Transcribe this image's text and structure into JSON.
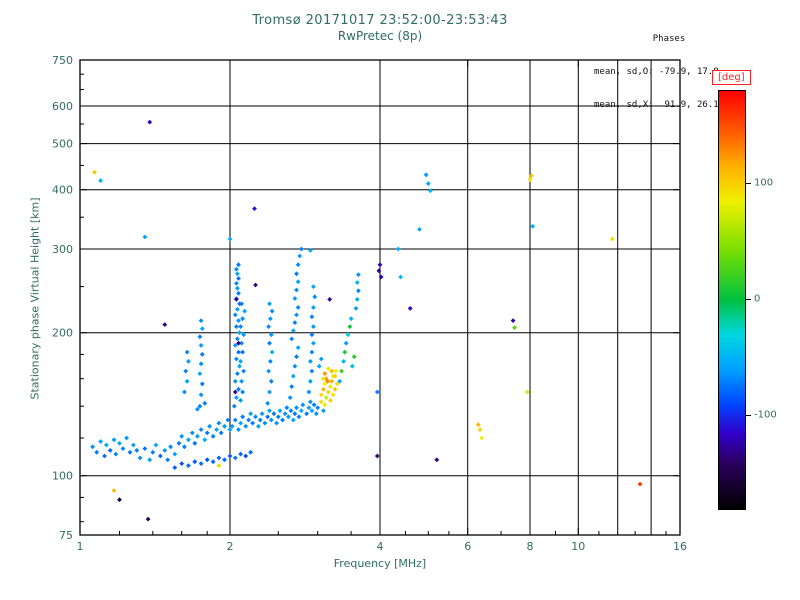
{
  "colors": {
    "axis_text": "#2f6e5e",
    "title_text": "#2f6e5e",
    "frame": "#000000",
    "grid": "#000000",
    "annotation": "#111111",
    "deg_label": "#ff2222",
    "background": "#ffffff"
  },
  "chart_data": {
    "type": "scatter",
    "title": "Tromsø 20171017 23:52:00-23:53:43",
    "subtitle": "RwPretec (8p)",
    "xlabel": "Frequency [MHz]",
    "ylabel": "Stationary phase Virtual Height [km]",
    "x_scale": "log",
    "y_scale": "log",
    "xlim": [
      1,
      16
    ],
    "ylim": [
      75,
      750
    ],
    "grid": true,
    "x_ticks": [
      {
        "v": 1,
        "label": "1"
      },
      {
        "v": 2,
        "label": "2"
      },
      {
        "v": 4,
        "label": "4"
      },
      {
        "v": 6,
        "label": "6"
      },
      {
        "v": 8,
        "label": "8"
      },
      {
        "v": 10,
        "label": "10"
      },
      {
        "v": 16,
        "label": "16"
      }
    ],
    "x_gridlines": [
      2,
      4,
      6,
      8,
      10,
      12,
      14
    ],
    "x_minor_ticks": [
      1.2,
      1.4,
      1.6,
      1.8,
      2.5,
      3,
      3.5,
      4.5,
      5,
      5.5,
      7,
      9,
      11,
      13,
      15
    ],
    "y_ticks": [
      {
        "v": 750,
        "label": "750"
      },
      {
        "v": 600,
        "label": "600"
      },
      {
        "v": 500,
        "label": "500"
      },
      {
        "v": 400,
        "label": "400"
      },
      {
        "v": 300,
        "label": "300"
      },
      {
        "v": 200,
        "label": "200"
      },
      {
        "v": 100,
        "label": "100"
      },
      {
        "v": 75,
        "label": "75"
      }
    ],
    "y_gridlines": [
      100,
      200,
      300,
      400,
      500,
      600
    ],
    "y_minor_ticks": [
      80,
      90,
      120,
      140,
      160,
      180,
      250,
      350,
      450,
      550,
      650,
      700
    ],
    "annotations": {
      "line1": "Phases",
      "line2": "mean, sd,O: -79.9, 17.8",
      "line3": "mean, sd,X:  91.9, 26.1"
    },
    "colorbar": {
      "label": "[deg]",
      "range": [
        -180,
        180
      ],
      "ticks": [
        100,
        0,
        -100
      ],
      "legend_position": "right",
      "stops": [
        [
          -180,
          "#000000"
        ],
        [
          -140,
          "#2b0060"
        ],
        [
          -115,
          "#3300cc"
        ],
        [
          -90,
          "#0044ff"
        ],
        [
          -60,
          "#00a0ff"
        ],
        [
          -30,
          "#00d8e0"
        ],
        [
          0,
          "#00c040"
        ],
        [
          45,
          "#7fe000"
        ],
        [
          85,
          "#f0f000"
        ],
        [
          115,
          "#ffb000"
        ],
        [
          145,
          "#ff5a00"
        ],
        [
          180,
          "#ff0000"
        ]
      ]
    },
    "points": [
      [
        1.06,
        115,
        -65
      ],
      [
        1.08,
        112,
        -72
      ],
      [
        1.1,
        118,
        -58
      ],
      [
        1.12,
        110,
        -76
      ],
      [
        1.13,
        116,
        -55
      ],
      [
        1.15,
        113,
        -80
      ],
      [
        1.17,
        119,
        -62
      ],
      [
        1.18,
        111,
        -70
      ],
      [
        1.2,
        117,
        -57
      ],
      [
        1.22,
        114,
        -68
      ],
      [
        1.24,
        120,
        -63
      ],
      [
        1.26,
        112,
        -75
      ],
      [
        1.28,
        116,
        -59
      ],
      [
        1.3,
        113,
        -71
      ],
      [
        1.32,
        109,
        -66
      ],
      [
        1.35,
        114,
        -74
      ],
      [
        1.38,
        108,
        -60
      ],
      [
        1.4,
        112,
        -69
      ],
      [
        1.42,
        116,
        -56
      ],
      [
        1.45,
        110,
        -78
      ],
      [
        1.48,
        113,
        -64
      ],
      [
        1.5,
        108,
        -72
      ],
      [
        1.52,
        115,
        -66
      ],
      [
        1.55,
        111,
        -59
      ],
      [
        1.58,
        117,
        -72
      ],
      [
        1.6,
        121,
        -64
      ],
      [
        1.62,
        115,
        -70
      ],
      [
        1.65,
        119,
        -57
      ],
      [
        1.68,
        123,
        -66
      ],
      [
        1.7,
        117,
        -75
      ],
      [
        1.72,
        121,
        -62
      ],
      [
        1.75,
        125,
        -68
      ],
      [
        1.78,
        119,
        -55
      ],
      [
        1.8,
        123,
        -73
      ],
      [
        1.82,
        127,
        -65
      ],
      [
        1.85,
        121,
        -70
      ],
      [
        1.88,
        125,
        -60
      ],
      [
        1.9,
        129,
        -67
      ],
      [
        1.92,
        123,
        -74
      ],
      [
        1.95,
        127,
        -62
      ],
      [
        1.98,
        131,
        -69
      ],
      [
        2.0,
        125,
        -58
      ],
      [
        1.55,
        104,
        -82
      ],
      [
        1.6,
        106,
        -86
      ],
      [
        1.65,
        105,
        -78
      ],
      [
        1.7,
        107,
        -83
      ],
      [
        1.75,
        106,
        -76
      ],
      [
        1.8,
        108,
        -85
      ],
      [
        1.85,
        107,
        -79
      ],
      [
        1.9,
        109,
        -81
      ],
      [
        1.95,
        108,
        -77
      ],
      [
        2.0,
        110,
        -84
      ],
      [
        2.05,
        109,
        -75
      ],
      [
        2.1,
        111,
        -80
      ],
      [
        2.15,
        110,
        -86
      ],
      [
        2.2,
        112,
        -78
      ],
      [
        2.02,
        127,
        -62
      ],
      [
        2.05,
        131,
        -70
      ],
      [
        2.08,
        125,
        -66
      ],
      [
        2.1,
        129,
        -57
      ],
      [
        2.12,
        133,
        -72
      ],
      [
        2.15,
        127,
        -64
      ],
      [
        2.18,
        131,
        -69
      ],
      [
        2.2,
        135,
        -60
      ],
      [
        2.22,
        129,
        -74
      ],
      [
        2.25,
        133,
        -66
      ],
      [
        2.28,
        127,
        -58
      ],
      [
        2.3,
        131,
        -71
      ],
      [
        2.32,
        135,
        -63
      ],
      [
        2.35,
        129,
        -68
      ],
      [
        2.38,
        133,
        -75
      ],
      [
        2.4,
        137,
        -59
      ],
      [
        2.42,
        131,
        -66
      ],
      [
        2.45,
        135,
        -72
      ],
      [
        2.48,
        129,
        -64
      ],
      [
        2.5,
        133,
        -70
      ],
      [
        2.52,
        137,
        -56
      ],
      [
        2.55,
        131,
        -73
      ],
      [
        2.58,
        135,
        -65
      ],
      [
        2.6,
        139,
        -68
      ],
      [
        2.62,
        133,
        -62
      ],
      [
        2.65,
        137,
        -70
      ],
      [
        2.68,
        131,
        -57
      ],
      [
        2.7,
        135,
        -74
      ],
      [
        2.72,
        139,
        -64
      ],
      [
        2.75,
        133,
        -69
      ],
      [
        2.78,
        137,
        -55
      ],
      [
        2.8,
        141,
        -67
      ],
      [
        2.85,
        135,
        -72
      ],
      [
        2.88,
        139,
        -61
      ],
      [
        2.9,
        143,
        -66
      ],
      [
        2.92,
        137,
        -58
      ],
      [
        2.95,
        141,
        -71
      ],
      [
        2.98,
        135,
        -64
      ],
      [
        3.0,
        139,
        -68
      ],
      [
        3.05,
        143,
        92
      ],
      [
        3.08,
        137,
        -62
      ],
      [
        3.1,
        141,
        88
      ],
      [
        1.62,
        150,
        -66
      ],
      [
        1.64,
        158,
        -60
      ],
      [
        1.63,
        166,
        -70
      ],
      [
        1.65,
        174,
        -62
      ],
      [
        1.64,
        182,
        -68
      ],
      [
        1.72,
        138,
        -63
      ],
      [
        1.78,
        142,
        -71
      ],
      [
        1.74,
        140,
        -70
      ],
      [
        1.75,
        148,
        -64
      ],
      [
        1.76,
        156,
        -72
      ],
      [
        1.74,
        164,
        -58
      ],
      [
        1.75,
        172,
        -66
      ],
      [
        1.76,
        180,
        -74
      ],
      [
        1.75,
        188,
        -61
      ],
      [
        1.74,
        196,
        -69
      ],
      [
        1.76,
        204,
        -56
      ],
      [
        1.75,
        212,
        -67
      ],
      [
        2.04,
        140,
        -68
      ],
      [
        2.06,
        146,
        -60
      ],
      [
        2.08,
        152,
        -72
      ],
      [
        2.05,
        158,
        -64
      ],
      [
        2.07,
        164,
        -70
      ],
      [
        2.09,
        170,
        -57
      ],
      [
        2.06,
        176,
        -66
      ],
      [
        2.08,
        182,
        -74
      ],
      [
        2.05,
        188,
        -62
      ],
      [
        2.07,
        194,
        -69
      ],
      [
        2.09,
        200,
        -56
      ],
      [
        2.06,
        206,
        -71
      ],
      [
        2.08,
        212,
        -63
      ],
      [
        2.05,
        218,
        -67
      ],
      [
        2.07,
        224,
        -59
      ],
      [
        2.09,
        230,
        -73
      ],
      [
        2.06,
        236,
        -65
      ],
      [
        2.08,
        242,
        -70
      ],
      [
        2.07,
        248,
        -61
      ],
      [
        2.06,
        254,
        -68
      ],
      [
        2.08,
        260,
        -75
      ],
      [
        2.07,
        266,
        -57
      ],
      [
        2.06,
        272,
        -66
      ],
      [
        2.08,
        278,
        -72
      ],
      [
        2.1,
        144,
        -64
      ],
      [
        2.12,
        150,
        -70
      ],
      [
        2.11,
        158,
        -62
      ],
      [
        2.13,
        166,
        -68
      ],
      [
        2.1,
        174,
        -58
      ],
      [
        2.12,
        182,
        -74
      ],
      [
        2.11,
        190,
        -66
      ],
      [
        2.13,
        198,
        -61
      ],
      [
        2.1,
        206,
        -70
      ],
      [
        2.12,
        214,
        -65
      ],
      [
        2.14,
        222,
        -57
      ],
      [
        2.11,
        230,
        -72
      ],
      [
        2.05,
        150,
        -126
      ],
      [
        2.08,
        190,
        -132
      ],
      [
        2.06,
        235,
        -121
      ],
      [
        2.38,
        142,
        -66
      ],
      [
        2.4,
        150,
        -60
      ],
      [
        2.42,
        158,
        -70
      ],
      [
        2.39,
        166,
        -63
      ],
      [
        2.41,
        174,
        -68
      ],
      [
        2.43,
        182,
        -56
      ],
      [
        2.4,
        190,
        -72
      ],
      [
        2.42,
        198,
        -64
      ],
      [
        2.39,
        206,
        -69
      ],
      [
        2.41,
        214,
        -61
      ],
      [
        2.43,
        222,
        -67
      ],
      [
        2.4,
        230,
        -59
      ],
      [
        2.64,
        146,
        -64
      ],
      [
        2.66,
        154,
        -70
      ],
      [
        2.68,
        162,
        -57
      ],
      [
        2.7,
        170,
        -66
      ],
      [
        2.72,
        178,
        -72
      ],
      [
        2.74,
        186,
        -60
      ],
      [
        2.66,
        194,
        -68
      ],
      [
        2.68,
        202,
        -55
      ],
      [
        2.7,
        210,
        -71
      ],
      [
        2.72,
        218,
        -63
      ],
      [
        2.74,
        226,
        -69
      ],
      [
        2.7,
        236,
        -62
      ],
      [
        2.72,
        246,
        -67
      ],
      [
        2.74,
        256,
        -58
      ],
      [
        2.72,
        266,
        -72
      ],
      [
        2.74,
        278,
        -65
      ],
      [
        2.76,
        290,
        -60
      ],
      [
        2.78,
        300,
        -68
      ],
      [
        2.88,
        150,
        -66
      ],
      [
        2.9,
        158,
        -60
      ],
      [
        2.92,
        166,
        -70
      ],
      [
        2.9,
        174,
        -63
      ],
      [
        2.92,
        182,
        -68
      ],
      [
        2.94,
        190,
        -56
      ],
      [
        2.92,
        198,
        -71
      ],
      [
        2.94,
        206,
        -64
      ],
      [
        2.92,
        216,
        -69
      ],
      [
        2.94,
        226,
        -61
      ],
      [
        2.96,
        238,
        -67
      ],
      [
        2.94,
        250,
        -58
      ],
      [
        3.05,
        148,
        95
      ],
      [
        3.08,
        152,
        112
      ],
      [
        3.1,
        156,
        85
      ],
      [
        3.12,
        160,
        122
      ],
      [
        3.15,
        150,
        100
      ],
      [
        3.18,
        154,
        90
      ],
      [
        3.2,
        158,
        116
      ],
      [
        3.22,
        162,
        80
      ],
      [
        3.25,
        152,
        105
      ],
      [
        3.28,
        156,
        95
      ],
      [
        3.1,
        164,
        126
      ],
      [
        3.15,
        168,
        88
      ],
      [
        3.2,
        166,
        112
      ],
      [
        3.25,
        162,
        98
      ],
      [
        3.12,
        146,
        70
      ],
      [
        3.18,
        144,
        102
      ],
      [
        3.22,
        148,
        92
      ],
      [
        3.08,
        160,
        78
      ],
      [
        3.14,
        158,
        130
      ],
      [
        3.26,
        166,
        86
      ],
      [
        3.32,
        158,
        -55
      ],
      [
        3.35,
        166,
        20
      ],
      [
        3.38,
        174,
        -48
      ],
      [
        3.4,
        182,
        8
      ],
      [
        3.42,
        190,
        -60
      ],
      [
        3.45,
        198,
        -40
      ],
      [
        3.48,
        206,
        4
      ],
      [
        3.5,
        214,
        -52
      ],
      [
        3.52,
        170,
        -45
      ],
      [
        3.55,
        178,
        15
      ],
      [
        3.58,
        225,
        -62
      ],
      [
        3.6,
        235,
        -55
      ],
      [
        3.62,
        245,
        -68
      ],
      [
        3.6,
        255,
        -50
      ],
      [
        3.62,
        265,
        -64
      ],
      [
        3.98,
        270,
        -130
      ],
      [
        4.0,
        278,
        -124
      ],
      [
        4.02,
        262,
        -119
      ],
      [
        3.95,
        150,
        -70
      ],
      [
        3.02,
        170,
        -55
      ],
      [
        3.05,
        176,
        -60
      ],
      [
        3.17,
        235,
        -125
      ],
      [
        1.07,
        435,
        105
      ],
      [
        1.1,
        418,
        -50
      ],
      [
        1.38,
        555,
        -115
      ],
      [
        1.35,
        318,
        -58
      ],
      [
        1.17,
        93,
        110
      ],
      [
        1.2,
        89,
        -150
      ],
      [
        1.37,
        81,
        -140
      ],
      [
        1.9,
        105,
        95
      ],
      [
        2.0,
        315,
        -55
      ],
      [
        2.24,
        365,
        -110
      ],
      [
        1.48,
        208,
        -135
      ],
      [
        2.25,
        252,
        -128
      ],
      [
        2.9,
        298,
        -55
      ],
      [
        4.35,
        300,
        -55
      ],
      [
        4.4,
        262,
        -48
      ],
      [
        5.0,
        412,
        -58
      ],
      [
        4.95,
        430,
        -62
      ],
      [
        5.05,
        398,
        -50
      ],
      [
        4.8,
        330,
        -55
      ],
      [
        4.6,
        225,
        -120
      ],
      [
        6.35,
        125,
        100
      ],
      [
        6.4,
        120,
        85
      ],
      [
        6.3,
        128,
        112
      ],
      [
        8.0,
        420,
        95
      ],
      [
        8.05,
        428,
        108
      ],
      [
        8.1,
        335,
        -50
      ],
      [
        7.4,
        212,
        -120
      ],
      [
        7.45,
        205,
        30
      ],
      [
        7.9,
        150,
        75
      ],
      [
        11.7,
        315,
        95
      ],
      [
        13.3,
        96,
        160
      ],
      [
        5.2,
        108,
        -135
      ],
      [
        3.95,
        110,
        -140
      ]
    ]
  }
}
